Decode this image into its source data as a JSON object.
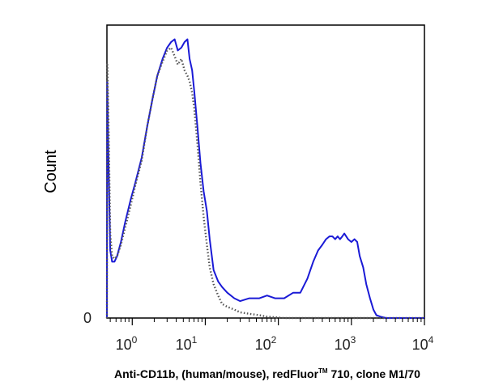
{
  "chart_data": {
    "type": "line",
    "title": "",
    "ylabel": "Count",
    "xlabel": {
      "before": "Anti-CD11b, (human/mouse), redFluor",
      "superscript": "TM",
      "after": " 710, clone M1/70"
    },
    "x_scale": "log",
    "xlim": [
      0.45,
      10000
    ],
    "ylim": [
      0,
      100
    ],
    "y_ticks": [
      {
        "value": 0,
        "label": "0"
      }
    ],
    "x_ticks": [
      {
        "value": 1,
        "base": "10",
        "exp": "0"
      },
      {
        "value": 10,
        "base": "10",
        "exp": "1"
      },
      {
        "value": 100,
        "base": "10",
        "exp": "2"
      },
      {
        "value": 1000,
        "base": "10",
        "exp": "3"
      },
      {
        "value": 10000,
        "base": "10",
        "exp": "4"
      }
    ],
    "grid": false,
    "series": [
      {
        "style": "solid",
        "color": "#1a1ad6",
        "x": [
          0.45,
          0.455,
          0.47,
          0.5,
          0.53,
          0.57,
          0.62,
          0.7,
          0.8,
          0.95,
          1.1,
          1.35,
          1.6,
          1.9,
          2.2,
          2.6,
          3.0,
          3.4,
          3.8,
          4.2,
          4.7,
          5.2,
          5.7,
          6.1,
          6.6,
          7.1,
          7.8,
          8.6,
          9.5,
          10.5,
          11.5,
          13,
          15,
          17,
          20,
          25,
          30,
          40,
          55,
          70,
          90,
          120,
          160,
          200,
          250,
          300,
          350,
          400,
          450,
          500,
          550,
          600,
          650,
          700,
          750,
          800,
          900,
          1000,
          1100,
          1200,
          1300,
          1450,
          1600,
          1800,
          2000,
          2200,
          2500,
          3000,
          4000,
          6000,
          10000
        ],
        "y": [
          0,
          84,
          60,
          24,
          20,
          20,
          22,
          27,
          34,
          42,
          48,
          57,
          68,
          78,
          86,
          92,
          96,
          98,
          99,
          95,
          96,
          98,
          99,
          92,
          88,
          80,
          68,
          55,
          45,
          38,
          28,
          17,
          13,
          11,
          9,
          7,
          6,
          7,
          7,
          8,
          7,
          7,
          9,
          9,
          14,
          20,
          24,
          26,
          28,
          29,
          29,
          28,
          29,
          28,
          29,
          30,
          28,
          27,
          28,
          27,
          22,
          18,
          12,
          7,
          3,
          1,
          0.5,
          0,
          0,
          0,
          0
        ]
      },
      {
        "style": "dotted",
        "color": "#555555",
        "x": [
          0.45,
          0.455,
          0.47,
          0.5,
          0.53,
          0.57,
          0.62,
          0.7,
          0.8,
          0.95,
          1.1,
          1.35,
          1.6,
          1.9,
          2.2,
          2.6,
          3.0,
          3.4,
          3.8,
          4.2,
          4.7,
          5.2,
          5.7,
          6.1,
          6.6,
          7.1,
          7.8,
          8.6,
          9.5,
          10.5,
          11.5,
          13,
          15,
          17,
          20,
          25,
          30,
          40,
          55,
          70,
          90,
          120,
          160,
          200,
          300,
          500,
          1000,
          2000,
          10000
        ],
        "y": [
          0,
          90,
          74,
          30,
          22,
          21,
          22,
          26,
          32,
          40,
          47,
          56,
          68,
          78,
          86,
          91,
          95,
          96,
          93,
          90,
          92,
          88,
          86,
          84,
          80,
          74,
          62,
          48,
          36,
          26,
          18,
          12,
          8,
          5,
          4,
          3,
          2,
          1.5,
          1,
          0.5,
          0.3,
          0,
          0,
          0,
          0,
          0,
          0,
          0,
          0
        ]
      }
    ]
  }
}
